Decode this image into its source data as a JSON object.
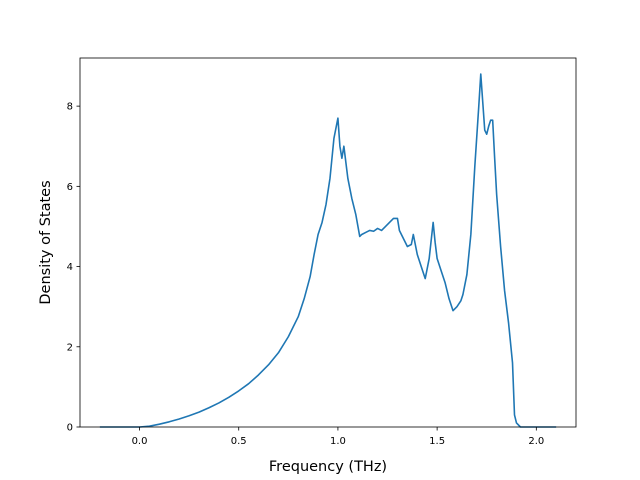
{
  "chart_data": {
    "type": "line",
    "title": "",
    "xlabel": "Frequency (THz)",
    "ylabel": "Density of States",
    "xlim": [
      -0.3,
      2.2
    ],
    "ylim": [
      0,
      9.2
    ],
    "xticks": [
      0.0,
      0.5,
      1.0,
      1.5,
      2.0
    ],
    "xtick_labels": [
      "0.0",
      "0.5",
      "1.0",
      "1.5",
      "2.0"
    ],
    "yticks": [
      0,
      2,
      4,
      6,
      8
    ],
    "ytick_labels": [
      "0",
      "2",
      "4",
      "6",
      "8"
    ],
    "grid": false,
    "legend": "none",
    "series": [
      {
        "color": "#1f77b4",
        "x": [
          -0.2,
          -0.1,
          0.0,
          0.05,
          0.1,
          0.15,
          0.2,
          0.25,
          0.3,
          0.35,
          0.4,
          0.45,
          0.5,
          0.55,
          0.6,
          0.65,
          0.7,
          0.75,
          0.8,
          0.83,
          0.86,
          0.88,
          0.9,
          0.92,
          0.94,
          0.96,
          0.98,
          1.0,
          1.01,
          1.02,
          1.03,
          1.05,
          1.07,
          1.09,
          1.11,
          1.12,
          1.14,
          1.16,
          1.18,
          1.2,
          1.22,
          1.24,
          1.26,
          1.28,
          1.3,
          1.31,
          1.33,
          1.35,
          1.37,
          1.38,
          1.4,
          1.42,
          1.44,
          1.46,
          1.48,
          1.49,
          1.5,
          1.52,
          1.54,
          1.56,
          1.58,
          1.6,
          1.62,
          1.63,
          1.65,
          1.67,
          1.69,
          1.71,
          1.72,
          1.73,
          1.74,
          1.75,
          1.76,
          1.77,
          1.78,
          1.79,
          1.8,
          1.82,
          1.84,
          1.86,
          1.88,
          1.89,
          1.9,
          1.92,
          2.0,
          2.1
        ],
        "y": [
          0.0,
          0.0,
          0.0,
          0.02,
          0.07,
          0.13,
          0.2,
          0.28,
          0.37,
          0.48,
          0.6,
          0.74,
          0.9,
          1.08,
          1.3,
          1.55,
          1.85,
          2.25,
          2.75,
          3.2,
          3.75,
          4.3,
          4.8,
          5.1,
          5.55,
          6.2,
          7.2,
          7.7,
          7.0,
          6.7,
          7.0,
          6.2,
          5.7,
          5.3,
          4.75,
          4.8,
          4.85,
          4.9,
          4.88,
          4.95,
          4.9,
          5.0,
          5.1,
          5.2,
          5.2,
          4.9,
          4.7,
          4.5,
          4.55,
          4.8,
          4.3,
          4.0,
          3.7,
          4.2,
          5.1,
          4.6,
          4.2,
          3.9,
          3.6,
          3.2,
          2.9,
          3.0,
          3.15,
          3.3,
          3.8,
          4.8,
          6.5,
          8.0,
          8.8,
          8.1,
          7.4,
          7.3,
          7.5,
          7.65,
          7.65,
          6.7,
          5.8,
          4.5,
          3.4,
          2.6,
          1.6,
          0.3,
          0.1,
          0.0,
          0.0,
          0.0
        ]
      }
    ]
  }
}
